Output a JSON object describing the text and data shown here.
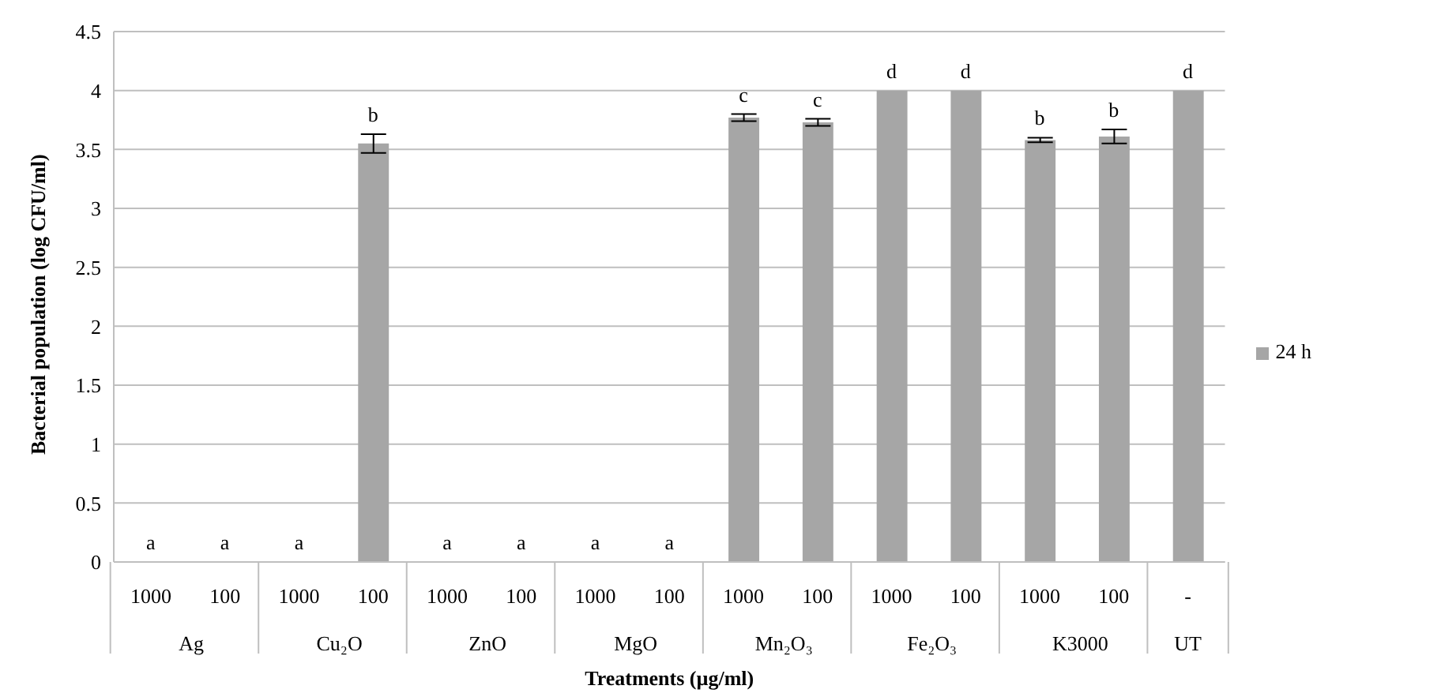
{
  "chart_data": {
    "type": "bar",
    "xlabel": "Treatments (µg/ml)",
    "ylabel": "Bacterial population (log CFU/ml)",
    "categories": [
      "1000",
      "100",
      "1000",
      "100",
      "1000",
      "100",
      "1000",
      "100",
      "1000",
      "100",
      "1000",
      "100",
      "1000",
      "100",
      "-"
    ],
    "annotations": [
      "Ag",
      "Cu₂O",
      "ZnO",
      "MgO",
      "Mn₂O₃",
      "Fe₂O₃",
      "K3000",
      "UT"
    ],
    "series": [
      {
        "name": "24 h",
        "color": "#a6a6a6",
        "values": [
          0,
          0,
          0,
          3.55,
          0,
          0,
          0,
          0,
          3.77,
          3.73,
          4.0,
          4.0,
          3.58,
          3.61,
          4.0
        ],
        "errors": [
          null,
          null,
          null,
          0.08,
          null,
          null,
          null,
          null,
          0.03,
          0.03,
          0,
          0,
          0.02,
          0.06,
          0
        ],
        "value_labels": [
          "a",
          "a",
          "a",
          "b",
          "a",
          "a",
          "a",
          "a",
          "c",
          "c",
          "d",
          "d",
          "b",
          "b",
          "d"
        ]
      }
    ],
    "ylim": [
      0,
      4.5
    ],
    "yticks": [
      0,
      0.5,
      1,
      1.5,
      2,
      2.5,
      3,
      3.5,
      4,
      4.5
    ],
    "grid": "y",
    "legend": "right"
  }
}
